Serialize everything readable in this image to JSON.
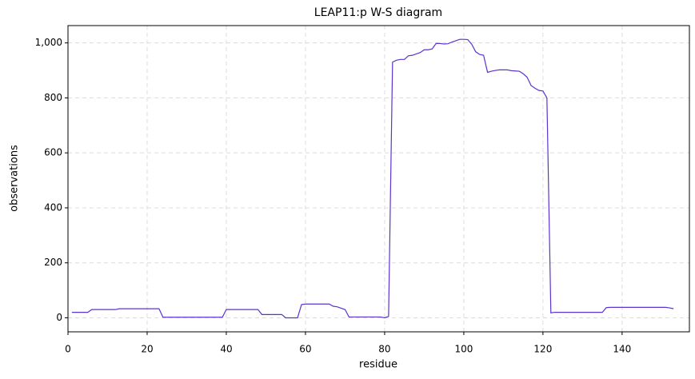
{
  "chart_data": {
    "type": "line",
    "title": "LEAP11:p W-S diagram",
    "xlabel": "residue",
    "ylabel": "observations",
    "x": [
      1,
      2,
      3,
      4,
      5,
      6,
      7,
      8,
      9,
      10,
      11,
      12,
      13,
      14,
      15,
      16,
      17,
      18,
      19,
      20,
      21,
      22,
      23,
      24,
      25,
      26,
      27,
      28,
      29,
      30,
      31,
      32,
      33,
      34,
      35,
      36,
      37,
      38,
      39,
      40,
      41,
      42,
      43,
      44,
      45,
      46,
      47,
      48,
      49,
      50,
      51,
      52,
      53,
      54,
      55,
      56,
      57,
      58,
      59,
      60,
      61,
      62,
      63,
      64,
      65,
      66,
      67,
      68,
      69,
      70,
      71,
      72,
      73,
      74,
      75,
      76,
      77,
      78,
      79,
      80,
      81,
      82,
      83,
      84,
      85,
      86,
      87,
      88,
      89,
      90,
      91,
      92,
      93,
      94,
      95,
      96,
      97,
      98,
      99,
      100,
      101,
      102,
      103,
      104,
      105,
      106,
      107,
      108,
      109,
      110,
      111,
      112,
      113,
      114,
      115,
      116,
      117,
      118,
      119,
      120,
      121,
      122,
      123,
      124,
      125,
      126,
      127,
      128,
      129,
      130,
      131,
      132,
      133,
      134,
      135,
      136,
      137,
      138,
      139,
      140,
      141,
      142,
      143,
      144,
      145,
      146,
      147,
      148,
      149,
      150,
      151,
      152,
      153
    ],
    "series": [
      {
        "name": "observations",
        "color": "#5b33cf",
        "values": [
          20,
          20,
          20,
          20,
          20,
          30,
          30,
          30,
          30,
          30,
          30,
          30,
          33,
          33,
          33,
          33,
          33,
          33,
          33,
          33,
          33,
          33,
          33,
          2,
          2,
          2,
          2,
          2,
          2,
          2,
          2,
          2,
          2,
          2,
          2,
          2,
          2,
          2,
          2,
          30,
          30,
          30,
          30,
          30,
          30,
          30,
          30,
          30,
          12,
          12,
          12,
          12,
          12,
          12,
          0,
          0,
          0,
          0,
          48,
          50,
          50,
          50,
          50,
          50,
          50,
          50,
          42,
          40,
          35,
          30,
          3,
          3,
          3,
          3,
          3,
          3,
          3,
          3,
          3,
          0,
          5,
          930,
          937,
          940,
          940,
          953,
          955,
          960,
          965,
          975,
          975,
          978,
          998,
          998,
          996,
          997,
          1003,
          1008,
          1013,
          1013,
          1012,
          995,
          968,
          958,
          955,
          893,
          897,
          900,
          902,
          902,
          902,
          899,
          898,
          897,
          888,
          875,
          845,
          835,
          827,
          825,
          800,
          18,
          20,
          20,
          20,
          20,
          20,
          20,
          20,
          20,
          20,
          20,
          20,
          20,
          20,
          37,
          38,
          38,
          38,
          38,
          38,
          38,
          38,
          38,
          38,
          38,
          38,
          38,
          38,
          38,
          38,
          36,
          33
        ]
      }
    ],
    "xlim": [
      0,
      157
    ],
    "ylim": [
      -51,
      1063
    ],
    "xticks": [
      0,
      20,
      40,
      60,
      80,
      100,
      120,
      140
    ],
    "yticks": [
      0,
      200,
      400,
      600,
      800,
      {
        "value": 1000,
        "label": "1,000"
      }
    ],
    "grid": true
  }
}
